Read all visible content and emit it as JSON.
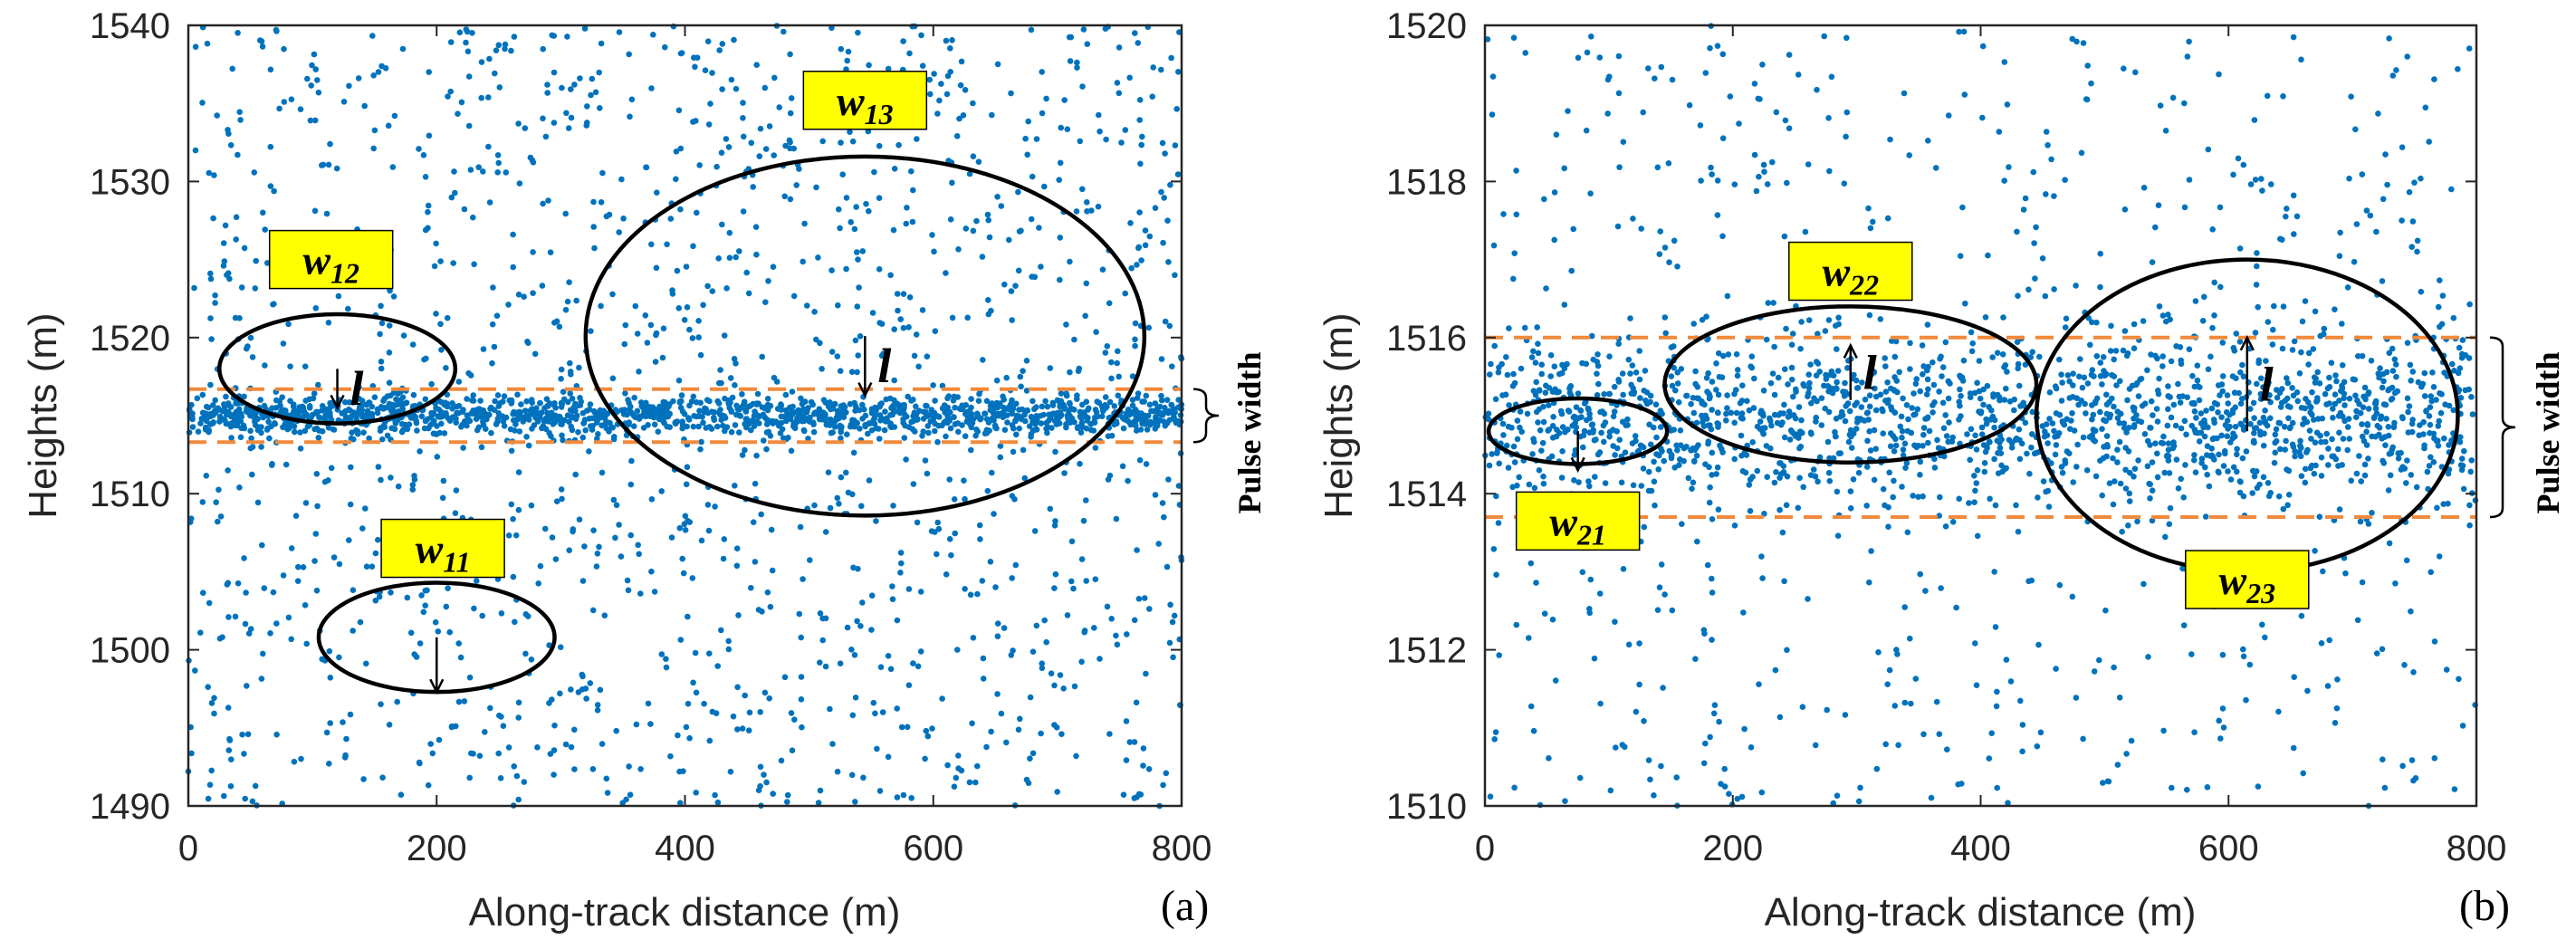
{
  "chart_data": [
    {
      "type": "scatter",
      "panel_label": "(a)",
      "xlabel": "Along-track distance (m)",
      "ylabel": "Heights (m)",
      "xlim": [
        0,
        800
      ],
      "ylim": [
        1490,
        1540
      ],
      "xticks": [
        "0",
        "200",
        "400",
        "600",
        "800"
      ],
      "yticks": [
        "1490",
        "1500",
        "1510",
        "1520",
        "1530",
        "1540"
      ],
      "point_color": "#0072BD",
      "signal_band": {
        "center": 1515.0,
        "halfwidth": 1.2,
        "count": 1400
      },
      "noise_count": 1500,
      "dashed_lines": [
        1516.7,
        1513.3
      ],
      "dashed_color": "#F08A3C",
      "bracket_label": "Pulse width",
      "ellipses": [
        {
          "label": "w",
          "sub": "11",
          "cx": 200,
          "cy": 1500.8,
          "rx": 95,
          "ry": 3.5,
          "arrow_from": 1500.8,
          "arrow_to": 1497.3,
          "show_l": false,
          "label_x": 205,
          "label_y": 1506.5
        },
        {
          "label": "w",
          "sub": "12",
          "cx": 120,
          "cy": 1518.0,
          "rx": 95,
          "ry": 3.5,
          "arrow_from": 1518.0,
          "arrow_to": 1515.5,
          "show_l": true,
          "label_x": 115,
          "label_y": 1525.0
        },
        {
          "label": "w",
          "sub": "13",
          "cx": 545,
          "cy": 1520.1,
          "rx": 225,
          "ry": 11.5,
          "arrow_from": 1520.1,
          "arrow_to": 1516.3,
          "show_l": true,
          "label_x": 545,
          "label_y": 1535.2
        }
      ]
    },
    {
      "type": "scatter",
      "panel_label": "(b)",
      "xlabel": "Along-track distance (m)",
      "ylabel": "Heights (m)",
      "xlim": [
        0,
        800
      ],
      "ylim": [
        1510,
        1520
      ],
      "xticks": [
        "0",
        "200",
        "400",
        "600",
        "800"
      ],
      "yticks": [
        "1510",
        "1512",
        "1514",
        "1516",
        "1518",
        "1520"
      ],
      "point_color": "#0072BD",
      "signal_band": {
        "center": 1514.95,
        "halfwidth": 1.1,
        "count": 1600
      },
      "noise_count": 650,
      "dashed_lines": [
        1516.0,
        1513.7
      ],
      "dashed_color": "#F08A3C",
      "bracket_label": "Pulse width",
      "ellipses": [
        {
          "label": "w",
          "sub": "21",
          "cx": 75,
          "cy": 1514.8,
          "rx": 72,
          "ry": 0.42,
          "arrow_from": 1514.8,
          "arrow_to": 1514.3,
          "show_l": false,
          "label_x": 75,
          "label_y": 1513.65
        },
        {
          "label": "w",
          "sub": "22",
          "cx": 295,
          "cy": 1515.4,
          "rx": 150,
          "ry": 1.0,
          "arrow_from": 1515.2,
          "arrow_to": 1515.9,
          "show_l": true,
          "label_x": 295,
          "label_y": 1516.85
        },
        {
          "label": "w",
          "sub": "23",
          "cx": 615,
          "cy": 1515.0,
          "rx": 170,
          "ry": 2.0,
          "arrow_from": 1514.8,
          "arrow_to": 1516.0,
          "show_l": true,
          "label_x": 615,
          "label_y": 1512.9
        }
      ]
    }
  ]
}
